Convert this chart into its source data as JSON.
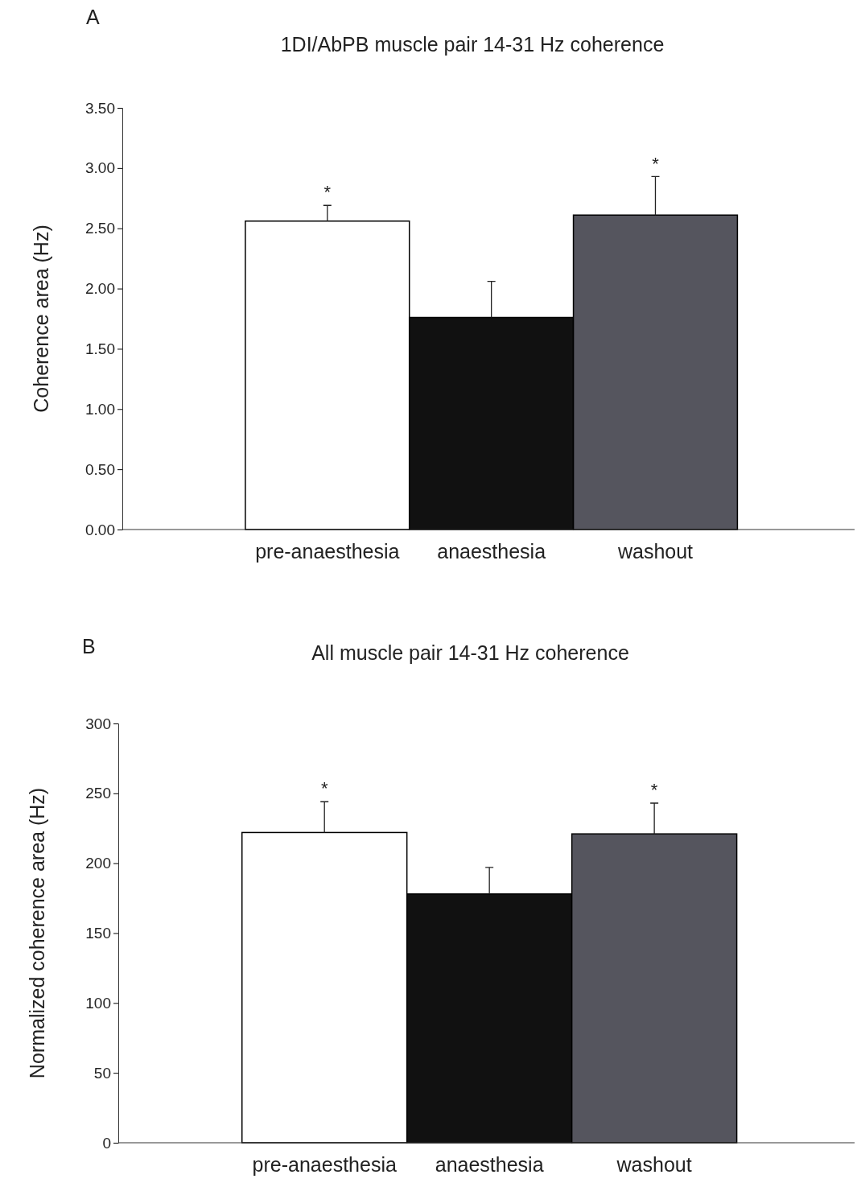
{
  "chart_data": [
    {
      "type": "bar",
      "title": "1DI/AbPB muscle pair 14-31 Hz coherence",
      "ylabel": "Coherence area (Hz)",
      "categories": [
        "pre-anaesthesia",
        "anaesthesia",
        "washout"
      ],
      "values": [
        2.56,
        1.76,
        2.61
      ],
      "colors": [
        "#ffffff",
        "#111111",
        "#55555e"
      ],
      "errors": [
        0.13,
        0.3,
        0.32
      ],
      "ylim": [
        0,
        3.5
      ],
      "yticks": [
        {
          "value": 0,
          "label": "0.00"
        },
        {
          "value": 0.5,
          "label": "0.50"
        },
        {
          "value": 1,
          "label": "1.00"
        },
        {
          "value": 1.5,
          "label": "1.50"
        },
        {
          "value": 2,
          "label": "2.00"
        },
        {
          "value": 2.5,
          "label": "2.50"
        },
        {
          "value": 3,
          "label": "3.00"
        },
        {
          "value": 3.5,
          "label": "3.50"
        }
      ],
      "annotations": [
        "A",
        {
          "text": "*",
          "x": "pre-anaesthesia",
          "y": 2.69
        },
        {
          "text": "*",
          "x": "washout",
          "y": 2.93
        }
      ]
    },
    {
      "type": "bar",
      "title": "All muscle pair 14-31 Hz coherence",
      "ylabel": "Normalized coherence area (Hz)",
      "categories": [
        "pre-anaesthesia",
        "anaesthesia",
        "washout"
      ],
      "values": [
        222,
        178,
        221
      ],
      "colors": [
        "#ffffff",
        "#111111",
        "#55555e"
      ],
      "errors": [
        22,
        19,
        22
      ],
      "ylim": [
        0,
        300
      ],
      "yticks": [
        0,
        50,
        100,
        150,
        200,
        250,
        300
      ],
      "annotations": [
        "B",
        {
          "text": "*",
          "x": "pre-anaesthesia",
          "y": 244
        },
        {
          "text": "*",
          "x": "washout",
          "y": 243
        }
      ]
    }
  ]
}
